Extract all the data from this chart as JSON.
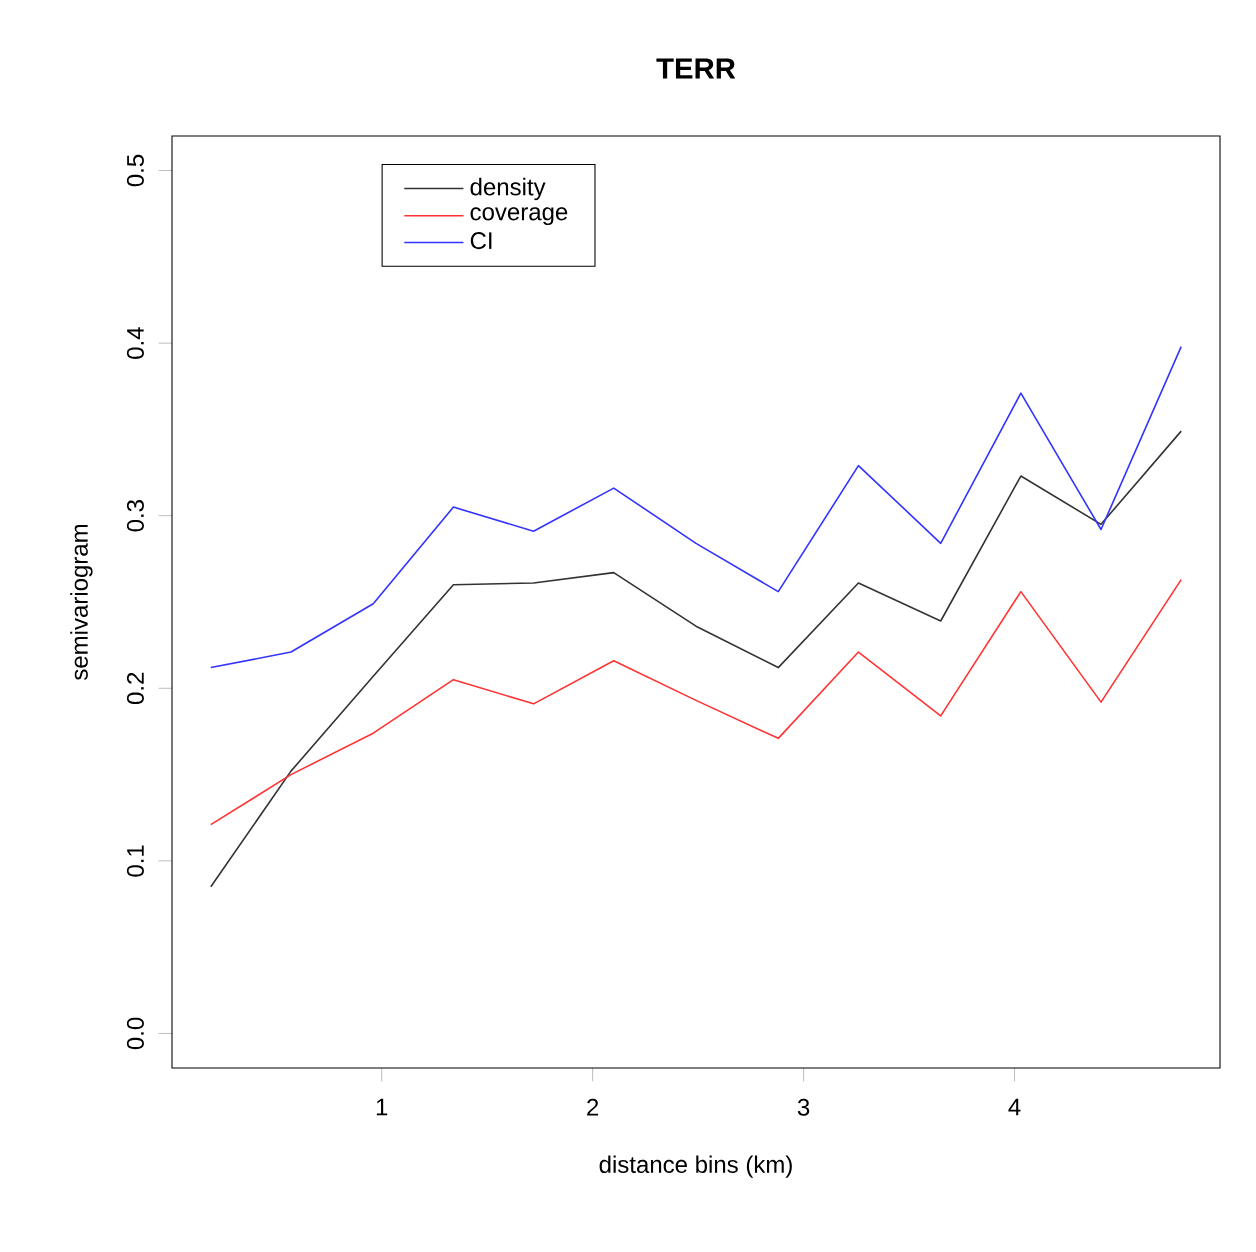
{
  "chart_data": {
    "type": "line",
    "title": "TERR",
    "xlabel": "distance bins (km)",
    "ylabel": "semivariogram",
    "x": [
      0.19,
      0.57,
      0.96,
      1.34,
      1.72,
      2.1,
      2.49,
      2.88,
      3.26,
      3.65,
      4.03,
      4.41,
      4.79
    ],
    "series": [
      {
        "name": "density",
        "color": "#333333",
        "values": [
          0.085,
          0.152,
          0.207,
          0.26,
          0.261,
          0.267,
          0.236,
          0.212,
          0.261,
          0.239,
          0.323,
          0.295,
          0.349
        ]
      },
      {
        "name": "coverage",
        "color": "#ff3333",
        "values": [
          0.121,
          0.15,
          0.174,
          0.205,
          0.191,
          0.216,
          0.193,
          0.171,
          0.221,
          0.184,
          0.256,
          0.192,
          0.263
        ]
      },
      {
        "name": "CI",
        "color": "#3333ff",
        "values": [
          0.212,
          0.221,
          0.249,
          0.305,
          0.291,
          0.316,
          0.284,
          0.256,
          0.329,
          0.284,
          0.371,
          0.292,
          0.398
        ]
      }
    ],
    "xlim": [
      0.006,
      4.974
    ],
    "ylim": [
      -0.02,
      0.52
    ],
    "xticks": [
      1,
      2,
      3,
      4
    ],
    "yticks": [
      {
        "value": 0,
        "label": "0.0"
      },
      {
        "value": 0.1,
        "label": "0.1"
      },
      {
        "value": 0.2,
        "label": "0.2"
      },
      {
        "value": 0.3,
        "label": "0.3"
      },
      {
        "value": 0.4,
        "label": "0.4"
      },
      {
        "value": 0.5,
        "label": "0.5"
      }
    ],
    "grid": false,
    "legend": "top left",
    "marker": "none",
    "line_style": "solid"
  }
}
